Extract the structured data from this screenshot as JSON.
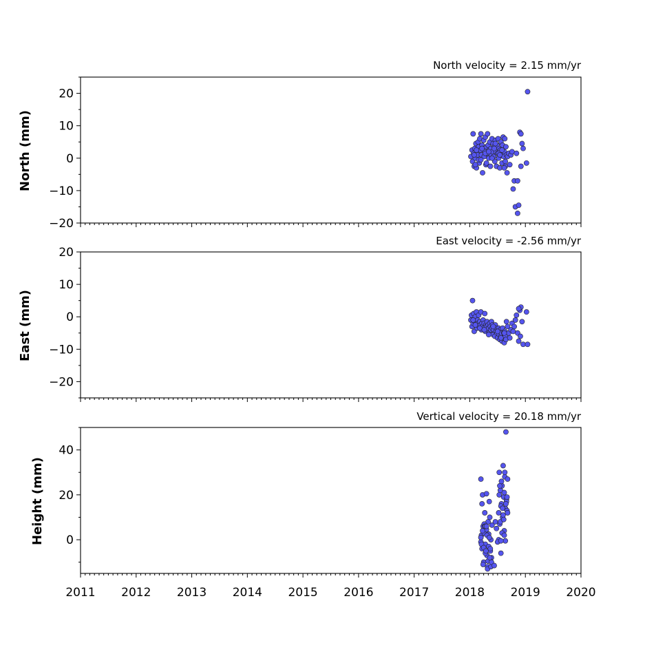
{
  "colors": {
    "point_fill": "#5555ee",
    "point_edge": "#222222"
  },
  "chart_data": [
    {
      "type": "scatter",
      "title": "North velocity = 2.15 mm/yr",
      "ylabel": "North (mm)",
      "xlim": [
        2011,
        2020
      ],
      "ylim": [
        -20,
        25
      ],
      "yticks": [
        -20,
        -10,
        0,
        10,
        20
      ],
      "xticks": [],
      "series": [
        {
          "x": [
            2018.02,
            2018.04,
            2018.05,
            2018.06,
            2018.07,
            2018.08,
            2018.09,
            2018.1,
            2018.11,
            2018.12,
            2018.13,
            2018.14,
            2018.15,
            2018.16,
            2018.17,
            2018.18,
            2018.19,
            2018.2,
            2018.21,
            2018.22,
            2018.23,
            2018.24,
            2018.25,
            2018.26,
            2018.27,
            2018.28,
            2018.29,
            2018.3,
            2018.31,
            2018.32,
            2018.33,
            2018.34,
            2018.35,
            2018.36,
            2018.37,
            2018.38,
            2018.39,
            2018.4,
            2018.41,
            2018.42,
            2018.43,
            2018.44,
            2018.45,
            2018.46,
            2018.47,
            2018.48,
            2018.49,
            2018.5,
            2018.51,
            2018.52,
            2018.53,
            2018.54,
            2018.55,
            2018.56,
            2018.57,
            2018.58,
            2018.59,
            2018.6,
            2018.61,
            2018.62,
            2018.63,
            2018.64,
            2018.65,
            2018.66,
            2018.67,
            2018.68,
            2018.7,
            2018.72,
            2018.74,
            2018.76,
            2018.78,
            2018.8,
            2018.82,
            2018.84,
            2018.86,
            2018.88,
            2018.9,
            2018.92,
            2018.94,
            2018.96,
            2019.02,
            2019.04,
            2018.08,
            2018.12,
            2018.16,
            2018.22,
            2018.28,
            2018.34,
            2018.4,
            2018.46,
            2018.52,
            2018.58,
            2018.64,
            2018.1,
            2018.2,
            2018.3,
            2018.44,
            2018.54,
            2018.62,
            2018.86,
            2018.92
          ],
          "y": [
            0.5,
            2.5,
            -1.0,
            7.5,
            1.5,
            -2.5,
            3.0,
            0.0,
            4.5,
            -3.0,
            2.0,
            1.0,
            5.0,
            3.5,
            -1.5,
            6.0,
            2.5,
            7.5,
            1.0,
            4.0,
            -4.5,
            3.0,
            5.5,
            0.5,
            2.0,
            6.5,
            -2.0,
            3.5,
            1.5,
            7.5,
            4.0,
            0.0,
            2.5,
            5.0,
            -2.5,
            3.0,
            1.0,
            6.0,
            2.0,
            4.5,
            0.5,
            3.5,
            -1.0,
            5.5,
            2.0,
            -2.5,
            4.0,
            1.5,
            6.0,
            0.0,
            3.0,
            -3.0,
            2.5,
            5.0,
            1.0,
            -1.5,
            4.0,
            6.5,
            0.5,
            2.0,
            6.0,
            -2.5,
            3.5,
            1.0,
            -4.5,
            0.5,
            1.5,
            -2.0,
            1.0,
            2.0,
            -9.5,
            -7.0,
            -15.0,
            1.5,
            -7.0,
            -14.5,
            8.0,
            7.5,
            4.5,
            3.0,
            -1.5,
            20.5,
            1.0,
            2.5,
            -0.5,
            3.0,
            1.5,
            2.0,
            0.0,
            4.5,
            1.5,
            2.5,
            -1.0,
            -2.0,
            -0.5,
            -1.5,
            3.0,
            1.0,
            -3.0,
            -17.0,
            -2.5
          ]
        }
      ]
    },
    {
      "type": "scatter",
      "title": "East velocity = -2.56 mm/yr",
      "ylabel": "East (mm)",
      "xlim": [
        2011,
        2020
      ],
      "ylim": [
        -25,
        20
      ],
      "yticks": [
        -20,
        -10,
        0,
        10,
        20
      ],
      "xticks": [],
      "series": [
        {
          "x": [
            2018.02,
            2018.03,
            2018.04,
            2018.05,
            2018.06,
            2018.07,
            2018.08,
            2018.09,
            2018.1,
            2018.11,
            2018.12,
            2018.13,
            2018.14,
            2018.15,
            2018.16,
            2018.17,
            2018.18,
            2018.19,
            2018.2,
            2018.21,
            2018.22,
            2018.23,
            2018.24,
            2018.25,
            2018.26,
            2018.27,
            2018.28,
            2018.29,
            2018.3,
            2018.31,
            2018.32,
            2018.33,
            2018.34,
            2018.35,
            2018.36,
            2018.37,
            2018.38,
            2018.39,
            2018.4,
            2018.41,
            2018.42,
            2018.43,
            2018.44,
            2018.45,
            2018.46,
            2018.47,
            2018.48,
            2018.49,
            2018.5,
            2018.51,
            2018.52,
            2018.53,
            2018.54,
            2018.55,
            2018.56,
            2018.57,
            2018.58,
            2018.59,
            2018.6,
            2018.61,
            2018.62,
            2018.63,
            2018.64,
            2018.65,
            2018.66,
            2018.68,
            2018.7,
            2018.72,
            2018.74,
            2018.76,
            2018.78,
            2018.8,
            2018.82,
            2018.84,
            2018.86,
            2018.88,
            2018.9,
            2018.92,
            2018.94,
            2018.96,
            2019.02,
            2019.04,
            2018.06,
            2018.1,
            2018.18,
            2018.26,
            2018.34,
            2018.42,
            2018.5,
            2018.56,
            2018.62,
            2018.88,
            2018.91
          ],
          "y": [
            -1.0,
            0.5,
            -3.0,
            5.0,
            -2.0,
            1.0,
            -4.5,
            -1.5,
            0.0,
            -2.5,
            1.5,
            -3.5,
            -1.0,
            -2.0,
            0.5,
            -3.0,
            -1.5,
            -2.5,
            1.5,
            -4.0,
            -2.0,
            -3.0,
            -1.0,
            -3.5,
            -2.0,
            1.0,
            -4.5,
            -2.5,
            -3.0,
            -1.5,
            -4.0,
            -2.5,
            -3.5,
            -5.0,
            -2.0,
            -3.0,
            -4.0,
            -1.5,
            -3.5,
            -2.5,
            -5.5,
            -4.0,
            -3.0,
            -6.0,
            -2.5,
            -4.5,
            -3.5,
            -5.0,
            -6.5,
            -4.0,
            -3.5,
            -5.5,
            -7.0,
            -4.0,
            -6.0,
            -5.0,
            -7.5,
            -3.5,
            -6.5,
            -5.0,
            -8.0,
            -4.5,
            -6.0,
            -7.0,
            -1.5,
            -3.0,
            -5.0,
            -6.5,
            -4.0,
            -2.0,
            -4.5,
            -3.0,
            -1.0,
            0.5,
            -5.0,
            -7.5,
            2.0,
            3.0,
            -1.5,
            -8.5,
            1.5,
            -8.5,
            -1.0,
            -2.5,
            -3.5,
            -4.0,
            -5.5,
            -3.0,
            -4.5,
            -6.5,
            -5.0,
            2.5,
            -6.0
          ]
        }
      ]
    },
    {
      "type": "scatter",
      "title": "Vertical velocity = 20.18 mm/yr",
      "ylabel": "Height (mm)",
      "xlim": [
        2011,
        2020
      ],
      "ylim": [
        -15,
        50
      ],
      "yticks": [
        0,
        20,
        40
      ],
      "xticks": [
        2011,
        2012,
        2013,
        2014,
        2015,
        2016,
        2017,
        2018,
        2019,
        2020
      ],
      "series": [
        {
          "x": [
            2018.2,
            2018.21,
            2018.22,
            2018.23,
            2018.24,
            2018.25,
            2018.26,
            2018.27,
            2018.28,
            2018.29,
            2018.3,
            2018.31,
            2018.32,
            2018.33,
            2018.34,
            2018.35,
            2018.36,
            2018.37,
            2018.38,
            2018.39,
            2018.4,
            2018.2,
            2018.22,
            2018.24,
            2018.26,
            2018.28,
            2018.3,
            2018.32,
            2018.34,
            2018.36,
            2018.38,
            2018.21,
            2018.23,
            2018.25,
            2018.27,
            2018.29,
            2018.31,
            2018.33,
            2018.35,
            2018.37,
            2018.39,
            2018.52,
            2018.53,
            2018.54,
            2018.55,
            2018.56,
            2018.57,
            2018.58,
            2018.59,
            2018.6,
            2018.61,
            2018.62,
            2018.63,
            2018.64,
            2018.65,
            2018.66,
            2018.67,
            2018.68,
            2018.52,
            2018.54,
            2018.56,
            2018.58,
            2018.6,
            2018.62,
            2018.64,
            2018.66,
            2018.68,
            2018.53,
            2018.55,
            2018.57,
            2018.59,
            2018.61,
            2018.63,
            2018.65,
            2018.67,
            2018.46,
            2018.48,
            2018.5,
            2018.56,
            2018.62,
            2018.2,
            2018.28,
            2018.36,
            2018.44,
            2018.3
          ],
          "y": [
            27.0,
            2.0,
            -4.0,
            20.0,
            6.0,
            -10.0,
            3.0,
            12.0,
            -2.0,
            5.0,
            20.5,
            -7.0,
            -12.0,
            8.0,
            -3.0,
            17.0,
            10.0,
            -5.0,
            0.0,
            -8.0,
            6.5,
            -1.0,
            16.0,
            -11.0,
            7.0,
            -6.0,
            4.5,
            -13.0,
            2.5,
            -9.0,
            -12.0,
            -2.0,
            4.0,
            -3.5,
            6.0,
            -5.0,
            2.0,
            -9.5,
            1.0,
            -4.0,
            -10.0,
            12.0,
            30.0,
            7.0,
            22.0,
            -6.0,
            16.0,
            24.0,
            10.0,
            33.0,
            19.0,
            4.0,
            28.0,
            14.0,
            48.0,
            18.0,
            13.0,
            27.0,
            0.0,
            24.0,
            15.0,
            3.0,
            11.0,
            21.0,
            -0.5,
            17.0,
            12.0,
            20.0,
            8.0,
            26.0,
            14.0,
            9.0,
            30.0,
            16.0,
            19.0,
            8.0,
            5.0,
            -1.0,
            -0.5,
            2.0,
            1.0,
            6.0,
            -8.0,
            -11.5,
            6.0
          ]
        }
      ]
    }
  ]
}
